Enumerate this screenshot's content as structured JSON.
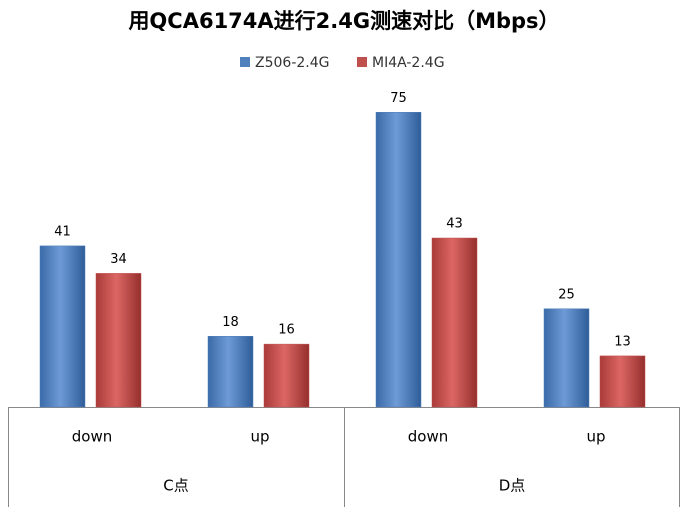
{
  "chart_data": {
    "type": "bar",
    "title": "用QCA6174A进行2.4G测速对比（Mbps）",
    "groups": [
      {
        "name": "C点",
        "categories": [
          "down",
          "up"
        ]
      },
      {
        "name": "D点",
        "categories": [
          "down",
          "up"
        ]
      }
    ],
    "series": [
      {
        "name": "Z506-2.4G",
        "color": "#4f81bd",
        "values": [
          41,
          18,
          75,
          25
        ]
      },
      {
        "name": "MI4A-2.4G",
        "color": "#c0504d",
        "values": [
          34,
          16,
          43,
          13
        ]
      }
    ],
    "legend": "top"
  }
}
